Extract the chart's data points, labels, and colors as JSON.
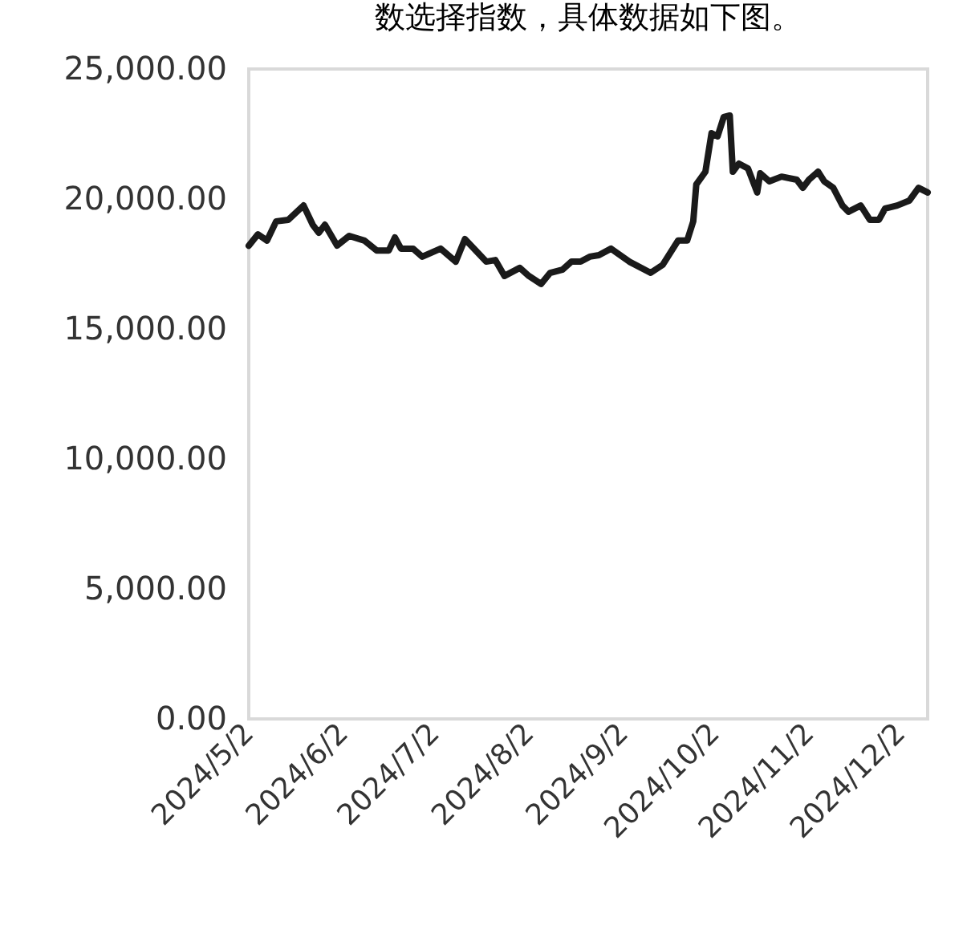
{
  "chart_data": {
    "type": "line",
    "annotations": [
      "数选择指数，具体数据如下图。"
    ],
    "x": [
      "2024-05-02",
      "2024-05-05",
      "2024-05-08",
      "2024-05-11",
      "2024-05-15",
      "2024-05-20",
      "2024-05-23",
      "2024-05-25",
      "2024-05-27",
      "2024-05-31",
      "2024-06-04",
      "2024-06-09",
      "2024-06-13",
      "2024-06-17",
      "2024-06-19",
      "2024-06-21",
      "2024-06-25",
      "2024-06-28",
      "2024-07-04",
      "2024-07-09",
      "2024-07-12",
      "2024-07-16",
      "2024-07-19",
      "2024-07-22",
      "2024-07-25",
      "2024-07-30",
      "2024-08-02",
      "2024-08-06",
      "2024-08-09",
      "2024-08-13",
      "2024-08-16",
      "2024-08-19",
      "2024-08-22",
      "2024-08-25",
      "2024-08-29",
      "2024-09-04",
      "2024-09-11",
      "2024-09-15",
      "2024-09-20",
      "2024-09-23",
      "2024-09-25",
      "2024-09-26",
      "2024-09-29",
      "2024-10-01",
      "2024-10-03",
      "2024-10-05",
      "2024-10-07",
      "2024-10-08",
      "2024-10-10",
      "2024-10-13",
      "2024-10-16",
      "2024-10-17",
      "2024-10-20",
      "2024-10-24",
      "2024-10-29",
      "2024-10-31",
      "2024-11-02",
      "2024-11-05",
      "2024-11-07",
      "2024-11-10",
      "2024-11-13",
      "2024-11-15",
      "2024-11-19",
      "2024-11-22",
      "2024-11-25",
      "2024-11-27",
      "2024-12-01",
      "2024-12-05",
      "2024-12-08",
      "2024-12-11"
    ],
    "series": [
      {
        "color": "#1a1a1a",
        "values": [
          18200,
          18640,
          18400,
          19140,
          19200,
          19750,
          19010,
          18700,
          19010,
          18210,
          18580,
          18400,
          18020,
          18020,
          18520,
          18090,
          18090,
          17780,
          18090,
          17590,
          18460,
          17960,
          17590,
          17650,
          17040,
          17350,
          17040,
          16730,
          17160,
          17280,
          17590,
          17590,
          17780,
          17840,
          18090,
          17590,
          17160,
          17470,
          18400,
          18400,
          19140,
          20560,
          21050,
          22530,
          22410,
          23150,
          23210,
          21050,
          21360,
          21170,
          20250,
          20990,
          20680,
          20860,
          20740,
          20430,
          20740,
          21050,
          20680,
          20430,
          19750,
          19510,
          19750,
          19200,
          19200,
          19630,
          19750,
          19940,
          20430,
          20250
        ]
      }
    ],
    "xlim": [
      "2024-05-02",
      "2024-12-11"
    ],
    "xticks": [
      {
        "value": "2024-05-02",
        "label": "2024/5/2"
      },
      {
        "value": "2024-06-02",
        "label": "2024/6/2"
      },
      {
        "value": "2024-07-02",
        "label": "2024/7/2"
      },
      {
        "value": "2024-08-02",
        "label": "2024/8/2"
      },
      {
        "value": "2024-09-02",
        "label": "2024/9/2"
      },
      {
        "value": "2024-10-02",
        "label": "2024/10/2"
      },
      {
        "value": "2024-11-02",
        "label": "2024/11/2"
      },
      {
        "value": "2024-12-02",
        "label": "2024/12/2"
      }
    ],
    "ylim": [
      0,
      25000
    ],
    "yticks": [
      {
        "value": 0,
        "label": "0.00"
      },
      {
        "value": 5000,
        "label": "5,000.00"
      },
      {
        "value": 10000,
        "label": "10,000.00"
      },
      {
        "value": 15000,
        "label": "15,000.00"
      },
      {
        "value": 20000,
        "label": "20,000.00"
      },
      {
        "value": 25000,
        "label": "25,000.00"
      }
    ]
  }
}
